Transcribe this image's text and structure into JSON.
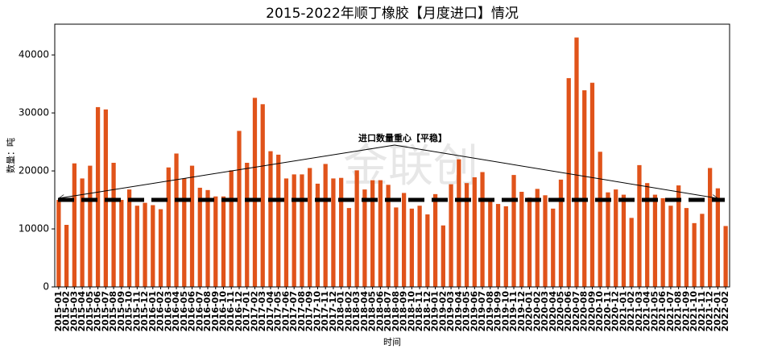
{
  "chart_data": {
    "type": "bar",
    "title": "2015-2022年顺丁橡胶【月度进口】情况",
    "x_label": "时间",
    "y_label": "数量：吨",
    "color": "#e0531a",
    "categories": [
      "2015-01",
      "2015-02",
      "2015-03",
      "2015-04",
      "2015-05",
      "2015-06",
      "2015-07",
      "2015-08",
      "2015-09",
      "2015-10",
      "2015-11",
      "2015-12",
      "2016-01",
      "2016-02",
      "2016-03",
      "2016-04",
      "2016-05",
      "2016-06",
      "2016-07",
      "2016-08",
      "2016-09",
      "2016-10",
      "2016-11",
      "2016-12",
      "2017-01",
      "2017-02",
      "2017-03",
      "2017-04",
      "2017-05",
      "2017-06",
      "2017-07",
      "2017-08",
      "2017-09",
      "2017-10",
      "2017-11",
      "2017-12",
      "2018-01",
      "2018-02",
      "2018-03",
      "2018-04",
      "2018-05",
      "2018-06",
      "2018-07",
      "2018-08",
      "2018-09",
      "2018-10",
      "2018-11",
      "2018-12",
      "2019-01",
      "2019-02",
      "2019-03",
      "2019-04",
      "2019-05",
      "2019-06",
      "2019-07",
      "2019-08",
      "2019-09",
      "2019-10",
      "2019-11",
      "2019-12",
      "2020-01",
      "2020-02",
      "2020-03",
      "2020-04",
      "2020-05",
      "2020-06",
      "2020-07",
      "2020-08",
      "2020-09",
      "2020-10",
      "2020-11",
      "2020-12",
      "2021-01",
      "2021-02",
      "2021-03",
      "2021-04",
      "2021-05",
      "2021-06",
      "2021-07",
      "2021-08",
      "2021-09",
      "2021-10",
      "2021-11",
      "2021-12",
      "2022-01",
      "2022-02"
    ],
    "values": [
      15000,
      10700,
      21300,
      18700,
      20900,
      31000,
      30600,
      21400,
      15000,
      16800,
      14000,
      14500,
      14100,
      13400,
      20600,
      23000,
      18700,
      20900,
      17100,
      16700,
      15600,
      15600,
      20100,
      26900,
      21400,
      32600,
      31500,
      23400,
      22800,
      18700,
      19400,
      19400,
      20500,
      17800,
      21200,
      18700,
      18800,
      13600,
      20100,
      16800,
      18400,
      18400,
      17600,
      13700,
      16200,
      13500,
      14000,
      12500,
      16000,
      10600,
      17700,
      22000,
      17900,
      18900,
      19800,
      14700,
      14300,
      13900,
      19300,
      16400,
      15400,
      16900,
      15800,
      13500,
      18500,
      36000,
      43000,
      33900,
      35200,
      23300,
      16300,
      16800,
      15900,
      11900,
      21000,
      17900,
      15900,
      15300,
      14000,
      17500,
      13600,
      11000,
      12600,
      20500,
      17000,
      10500
    ],
    "ylim": [
      0,
      45300
    ],
    "yticks": [
      0,
      10000,
      20000,
      30000,
      40000
    ],
    "reference_line": {
      "value": 15000,
      "label": "进口数量重心【平稳】"
    },
    "watermark": "金联创"
  }
}
